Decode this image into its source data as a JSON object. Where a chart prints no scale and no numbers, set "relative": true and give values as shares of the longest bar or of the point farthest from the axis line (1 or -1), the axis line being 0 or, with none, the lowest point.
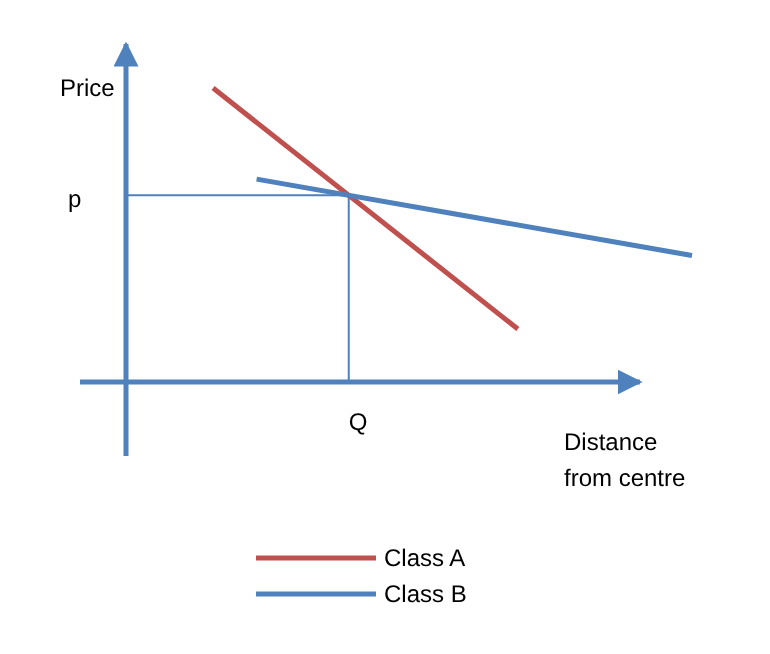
{
  "chart_data": {
    "type": "line",
    "relative": true,
    "ylabel": "Price",
    "xlabel": "Distance from centre",
    "categories": [
      null,
      null,
      null,
      null,
      null,
      null,
      null,
      null,
      null,
      null,
      null,
      null,
      null,
      null
    ],
    "series": [
      {
        "name": "Class A",
        "color": "#c0504d",
        "values": [
          null,
          null,
          1,
          null,
          null,
          null,
          null,
          null,
          null,
          0.18,
          null,
          null,
          null,
          null
        ]
      },
      {
        "name": "Class B",
        "color": "#4f81bd",
        "values": [
          null,
          null,
          null,
          0.69,
          null,
          null,
          null,
          null,
          null,
          null,
          null,
          null,
          null,
          0.43
        ]
      }
    ],
    "annotations": [
      "p",
      "Q"
    ],
    "legend": "bottom",
    "marker": "none",
    "line_style": "solid"
  }
}
